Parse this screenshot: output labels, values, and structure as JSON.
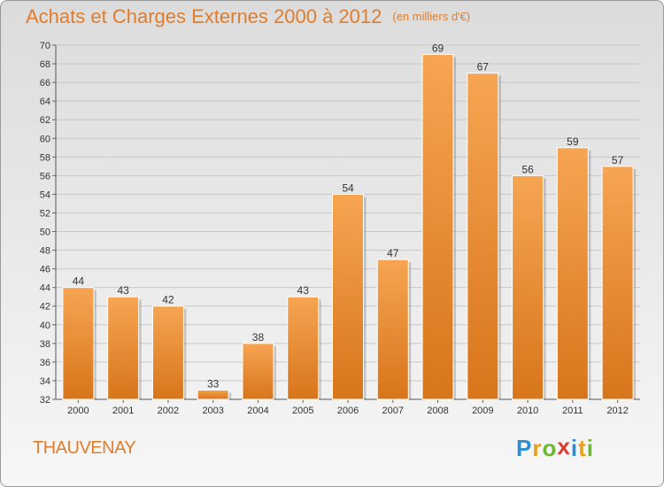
{
  "title": "Achats et Charges Externes 2000 à 2012",
  "unit": "(en milliers d'€)",
  "town": "THAUVENAY",
  "logo": [
    "P",
    "r",
    "o",
    "x",
    "i",
    "t",
    "i"
  ],
  "colors": {
    "bar_top": "#f6a552",
    "bar_bottom": "#d8751b",
    "title": "#e07d2c",
    "logo": [
      "#2b8fd6",
      "#e8a019",
      "#6ab934",
      "#e03a2e",
      "#2b8fd6",
      "#e8a019",
      "#6ab934"
    ]
  },
  "chart_data": {
    "type": "bar",
    "title": "Achats et Charges Externes 2000 à 2012",
    "categories": [
      "2000",
      "2001",
      "2002",
      "2003",
      "2004",
      "2005",
      "2006",
      "2007",
      "2008",
      "2009",
      "2010",
      "2011",
      "2012"
    ],
    "values": [
      44,
      43,
      42,
      33,
      38,
      43,
      54,
      47,
      69,
      67,
      56,
      59,
      57
    ],
    "ylim": [
      32,
      70
    ],
    "yticks": [
      32,
      34,
      36,
      38,
      40,
      42,
      44,
      46,
      48,
      50,
      52,
      54,
      56,
      58,
      60,
      62,
      64,
      66,
      68,
      70
    ],
    "grid": true
  }
}
